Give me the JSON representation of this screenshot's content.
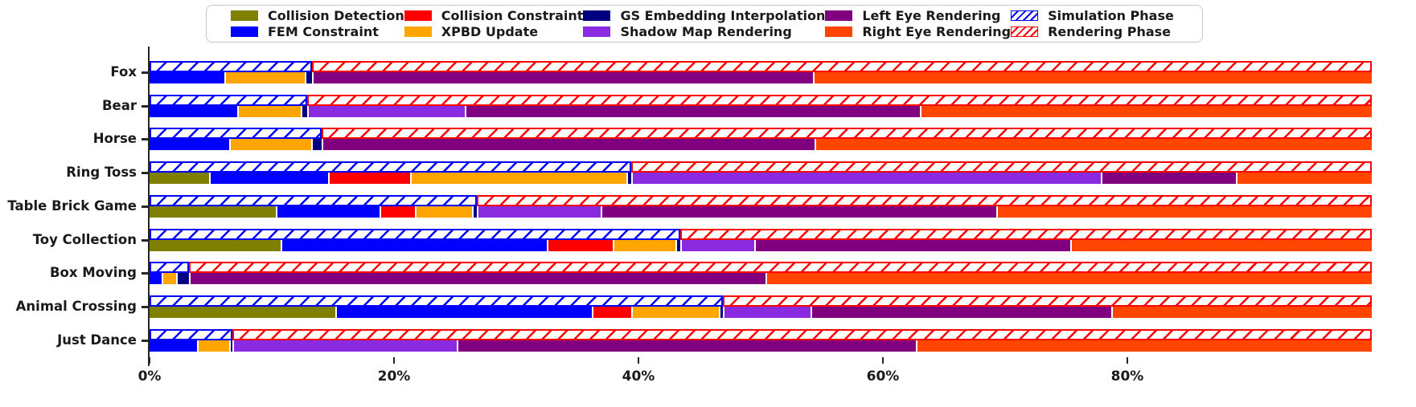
{
  "figure": {
    "background": "#ffffff"
  },
  "legend": {
    "columns": [
      [
        {
          "label": "Collision Detection",
          "swatch": "solid",
          "color": "#808000"
        },
        {
          "label": "FEM Constraint",
          "swatch": "solid",
          "color": "#0000ff"
        }
      ],
      [
        {
          "label": "Collision Constraint",
          "swatch": "solid",
          "color": "#ff0000"
        },
        {
          "label": "XPBD Update",
          "swatch": "solid",
          "color": "#ffa500"
        }
      ],
      [
        {
          "label": "GS Embedding Interpolation",
          "swatch": "solid",
          "color": "#000080"
        },
        {
          "label": "Shadow Map Rendering",
          "swatch": "solid",
          "color": "#8a2be2"
        }
      ],
      [
        {
          "label": "Left Eye Rendering",
          "swatch": "solid",
          "color": "#800080"
        },
        {
          "label": "Right Eye Rendering",
          "swatch": "solid",
          "color": "#ff4500"
        }
      ],
      [
        {
          "label": "Simulation Phase",
          "swatch": "hatch-blue",
          "color": "#0000ff"
        },
        {
          "label": "Rendering Phase",
          "swatch": "hatch-red",
          "color": "#ff0000"
        }
      ]
    ]
  },
  "chart_data": {
    "type": "bar",
    "orientation": "horizontal",
    "stacked": true,
    "unit": "percent of frame time",
    "title": "",
    "xlabel": "",
    "ylabel": "",
    "xlim": [
      0,
      100
    ],
    "grid": false,
    "x_ticks": {
      "values": [
        0,
        20,
        40,
        60,
        80
      ],
      "labels": [
        "0%",
        "20%",
        "40%",
        "60%",
        "80%"
      ]
    },
    "categories": [
      "Fox",
      "Bear",
      "Horse",
      "Ring Toss",
      "Table Brick Game",
      "Toy Collection",
      "Box Moving",
      "Animal Crossing",
      "Just Dance"
    ],
    "components": [
      {
        "name": "Collision Detection",
        "color": "#808000"
      },
      {
        "name": "FEM Constraint",
        "color": "#0000ff"
      },
      {
        "name": "Collision Constraint",
        "color": "#ff0000"
      },
      {
        "name": "XPBD Update",
        "color": "#ffa500"
      },
      {
        "name": "GS Embedding Interpolation",
        "color": "#000080"
      },
      {
        "name": "Shadow Map Rendering",
        "color": "#8a2be2"
      },
      {
        "name": "Left Eye Rendering",
        "color": "#800080"
      },
      {
        "name": "Right Eye Rendering",
        "color": "#ff4500"
      }
    ],
    "series": [
      {
        "name": "Collision Detection",
        "values": [
          0,
          0,
          0,
          4.9,
          10.3,
          10.7,
          0,
          15.2,
          0
        ]
      },
      {
        "name": "FEM Constraint",
        "values": [
          6.1,
          7.2,
          6.5,
          9.7,
          8.5,
          21.8,
          1.0,
          21.0,
          3.9
        ]
      },
      {
        "name": "Collision Constraint",
        "values": [
          0,
          0,
          0,
          6.7,
          2.9,
          5.4,
          0,
          3.2,
          0
        ]
      },
      {
        "name": "XPBD Update",
        "values": [
          6.6,
          5.2,
          6.7,
          17.7,
          4.7,
          5.1,
          1.2,
          7.2,
          2.6
        ]
      },
      {
        "name": "GS Embedding Interpolation",
        "values": [
          0.6,
          0.5,
          0.9,
          0.4,
          0.4,
          0.4,
          1.0,
          0.3,
          0.3
        ]
      },
      {
        "name": "Shadow Map Rendering",
        "values": [
          0,
          12.9,
          0,
          38.4,
          10.1,
          6.1,
          0,
          7.2,
          18.3
        ]
      },
      {
        "name": "Left Eye Rendering",
        "values": [
          41.0,
          37.2,
          40.3,
          11.1,
          32.4,
          25.8,
          47.2,
          24.6,
          37.6
        ]
      },
      {
        "name": "Right Eye Rendering",
        "values": [
          45.7,
          37.0,
          45.6,
          11.1,
          30.7,
          24.7,
          49.6,
          21.3,
          37.3
        ]
      }
    ],
    "phases": {
      "simulation": {
        "label": "Simulation Phase",
        "color": "#0000ff",
        "start": 0,
        "end_values": [
          13.3,
          12.9,
          14.1,
          39.4,
          26.8,
          43.4,
          3.2,
          46.9,
          6.8
        ]
      },
      "rendering": {
        "label": "Rendering Phase",
        "color": "#ff0000",
        "end_values": [
          100,
          100,
          100,
          100,
          100,
          100,
          100,
          100,
          100
        ]
      }
    },
    "legend_position": "top center"
  }
}
